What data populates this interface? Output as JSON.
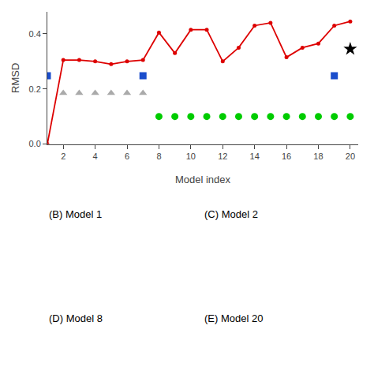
{
  "chart_data": {
    "type": "scatter",
    "xlabel": "Model index",
    "ylabel": "RMSD",
    "xlim": [
      1,
      20.5
    ],
    "ylim": [
      0.0,
      0.48
    ],
    "xticks": [
      2,
      4,
      6,
      8,
      10,
      12,
      14,
      16,
      18,
      20
    ],
    "yticks": [
      {
        "value": 0.0,
        "label": "0.0"
      },
      0.2,
      0.4
    ],
    "grid": false,
    "series": [
      {
        "type": "line",
        "color": "#dd0000",
        "marker": "circle",
        "x": [
          1,
          2,
          3,
          4,
          5,
          6,
          7,
          8,
          9,
          10,
          11,
          12,
          13,
          14,
          15,
          16,
          17,
          18,
          19,
          20
        ],
        "values": [
          0.0,
          0.305,
          0.305,
          0.3,
          0.29,
          0.3,
          0.305,
          0.405,
          0.33,
          0.415,
          0.415,
          0.3,
          0.35,
          0.43,
          0.44,
          0.315,
          0.35,
          0.365,
          0.43,
          0.445
        ]
      },
      {
        "type": "scatter",
        "color": "#1a4dcc",
        "marker": "square",
        "x": [
          1,
          7,
          19
        ],
        "values": [
          0.248,
          0.248,
          0.248
        ]
      },
      {
        "type": "scatter",
        "color": "#aaaaaa",
        "marker": "triangle-up",
        "x": [
          2,
          3,
          4,
          5,
          6,
          7
        ],
        "values": [
          0.185,
          0.185,
          0.185,
          0.185,
          0.185,
          0.185
        ]
      },
      {
        "type": "scatter",
        "color": "#00cc00",
        "marker": "circle",
        "x": [
          8,
          9,
          10,
          11,
          12,
          13,
          14,
          15,
          16,
          17,
          18,
          19,
          20
        ],
        "values": [
          0.1,
          0.1,
          0.1,
          0.1,
          0.1,
          0.1,
          0.1,
          0.1,
          0.1,
          0.1,
          0.1,
          0.1,
          0.1
        ]
      },
      {
        "type": "scatter",
        "color": "black",
        "marker": "star",
        "x": [
          20
        ],
        "values": [
          0.345
        ]
      }
    ],
    "annotations": [
      "(B) Model 1",
      "(C) Model 2",
      "(D) Model 8",
      "(E) Model 20"
    ]
  }
}
